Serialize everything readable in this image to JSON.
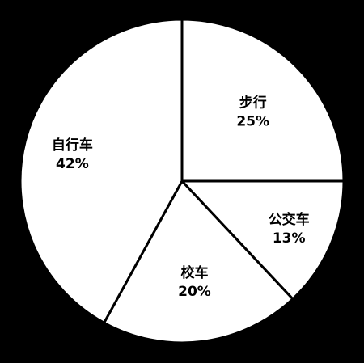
{
  "chart_data": {
    "type": "pie",
    "categories": [
      "步行",
      "公交车",
      "校车",
      "自行车"
    ],
    "values": [
      25,
      13,
      20,
      42
    ],
    "value_labels": [
      "25%",
      "13%",
      "20%",
      "42%"
    ],
    "start_angle": "top (12 o'clock)",
    "direction": "clockwise",
    "legend": "none",
    "colors": {
      "background": "#000000",
      "slice_fill": "#ffffff",
      "slice_stroke": "#000000",
      "label_text": "#000000"
    }
  }
}
